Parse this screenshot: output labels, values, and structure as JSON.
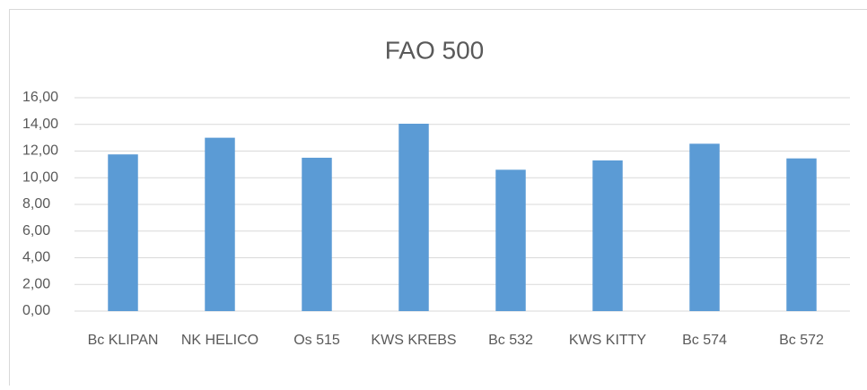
{
  "chart_data": {
    "type": "bar",
    "title": "FAO 500",
    "categories": [
      "Bc KLIPAN",
      "NK HELICO",
      "Os 515",
      "KWS KREBS",
      "Bc 532",
      "KWS KITTY",
      "Bc 574",
      "Bc 572"
    ],
    "values": [
      11.75,
      13.0,
      11.5,
      14.05,
      10.6,
      11.3,
      12.55,
      11.45
    ],
    "color": "#5b9bd5",
    "ylim": [
      0,
      16
    ],
    "yticks": [
      {
        "value": 0,
        "label": "0,00"
      },
      {
        "value": 2,
        "label": "2,00"
      },
      {
        "value": 4,
        "label": "4,00"
      },
      {
        "value": 6,
        "label": "6,00"
      },
      {
        "value": 8,
        "label": "8,00"
      },
      {
        "value": 10,
        "label": "10,00"
      },
      {
        "value": 12,
        "label": "12,00"
      },
      {
        "value": 14,
        "label": "14,00"
      },
      {
        "value": 16,
        "label": "16,00"
      }
    ],
    "grid": true
  }
}
